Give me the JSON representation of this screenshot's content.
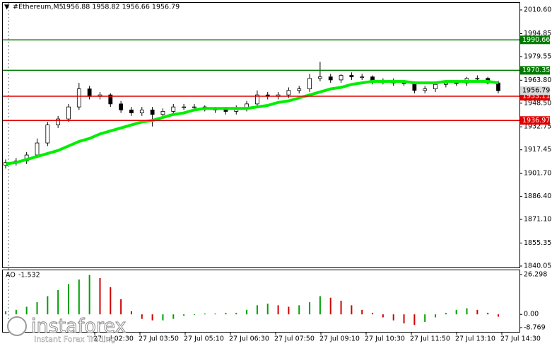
{
  "header": {
    "symbol": "#Ethereum,M5",
    "ohlc": "1956.88 1958.82 1956.66 1956.79"
  },
  "chart_data": [
    {
      "type": "candlestick",
      "open": [
        1907,
        1909,
        1910,
        1914,
        1922,
        1934,
        1938,
        1946,
        1958,
        1953,
        1954,
        1948,
        1944,
        1942,
        1944,
        1941,
        1943,
        1946,
        1946,
        1946,
        1945,
        1944,
        1943,
        1945,
        1948,
        1954,
        1953,
        1954,
        1957,
        1958,
        1965,
        1966,
        1964,
        1967,
        1966,
        1966,
        1963,
        1963,
        1962,
        1962,
        1957,
        1958,
        1961,
        1962,
        1962,
        1965,
        1965,
        1962
      ],
      "high": [
        1911,
        1912,
        1916,
        1925,
        1936,
        1940,
        1948,
        1962,
        1960,
        1956,
        1955,
        1950,
        1946,
        1946,
        1946,
        1945,
        1948,
        1948,
        1948,
        1947,
        1946,
        1946,
        1947,
        1950,
        1957,
        1956,
        1956,
        1959,
        1960,
        1968,
        1976,
        1968,
        1968,
        1969,
        1968,
        1967,
        1965,
        1965,
        1964,
        1963,
        1960,
        1962,
        1963,
        1964,
        1966,
        1967,
        1966,
        1963.5
      ],
      "low": [
        1905,
        1907,
        1908,
        1912,
        1920,
        1932,
        1936,
        1944,
        1951,
        1951,
        1946,
        1942,
        1940,
        1940,
        1933,
        1939,
        1941,
        1944,
        1944,
        1943,
        1942,
        1941,
        1941,
        1943,
        1946,
        1951,
        1951,
        1952,
        1955,
        1956,
        1963,
        1962,
        1962,
        1964,
        1964,
        1961,
        1961,
        1960,
        1960,
        1955,
        1955,
        1956,
        1959,
        1960,
        1960,
        1963,
        1961,
        1955
      ],
      "close": [
        1909,
        1910,
        1914,
        1922,
        1934,
        1938,
        1946,
        1958,
        1953,
        1954,
        1948,
        1944,
        1942,
        1944,
        1941,
        1943,
        1946,
        1946,
        1946,
        1945,
        1944,
        1943,
        1945,
        1948,
        1954,
        1953,
        1954,
        1957,
        1958,
        1965,
        1966,
        1964,
        1967,
        1966,
        1966,
        1963,
        1963,
        1962,
        1962,
        1957,
        1958,
        1961,
        1962,
        1962,
        1965,
        1965,
        1962,
        1956.79
      ],
      "ma": [
        1908,
        1909,
        1911,
        1913,
        1915,
        1917,
        1920,
        1923,
        1925,
        1928,
        1930,
        1932,
        1934,
        1936,
        1937,
        1939,
        1941,
        1942,
        1944,
        1945,
        1945,
        1945,
        1945,
        1945,
        1946,
        1947,
        1949,
        1950,
        1952,
        1954,
        1956,
        1958,
        1959,
        1961,
        1962,
        1963,
        1963,
        1963,
        1963,
        1962,
        1962,
        1962,
        1963,
        1963,
        1963,
        1963,
        1963,
        1962
      ],
      "ma_color": "#00ee00",
      "ylim": [
        1840.05,
        2010.6
      ],
      "yticks": [
        {
          "value": 2010.6,
          "label": "2010.60"
        },
        1994.85,
        1979.55,
        {
          "value": 1963.8,
          "label": "1963.80"
        },
        {
          "value": 1948.5,
          "label": "1948.50"
        },
        1932.75,
        1917.45,
        {
          "value": 1901.7,
          "label": "1901.70"
        },
        {
          "value": 1886.4,
          "label": "1886.40"
        },
        {
          "value": 1871.1,
          "label": "1871.10"
        },
        1855.35,
        1840.05
      ],
      "levels": [
        {
          "value": 1990.66,
          "color": "#007a00"
        },
        {
          "value": 1970.35,
          "color": "#007a00"
        },
        {
          "value": 1953.11,
          "color": "#e00000"
        },
        {
          "value": 1936.97,
          "color": "#e00000"
        }
      ],
      "current": 1956.79
    },
    {
      "type": "bar",
      "name": "AO",
      "current": -1.532,
      "values": [
        2,
        3,
        5,
        8,
        12,
        16,
        20,
        23,
        26,
        24,
        18,
        10,
        2,
        -3,
        -4,
        -4,
        -3,
        -1,
        0,
        0.5,
        0.5,
        1,
        1,
        3,
        6,
        7,
        6,
        5,
        6,
        8,
        12,
        11,
        9,
        6,
        3,
        1,
        -2,
        -4,
        -6,
        -7,
        -5,
        -2,
        1,
        3,
        4,
        3,
        1,
        -1.532
      ],
      "up_color": "#00a000",
      "down_color": "#d00000",
      "ylim": [
        -8.769,
        26.298
      ],
      "yticks": [
        26.298,
        {
          "value": 0,
          "label": "0.00"
        },
        -8.769
      ]
    }
  ],
  "time_axis": [
    "27 Jul 02:30",
    "27 Jul 03:50",
    "27 Jul 05:10",
    "27 Jul 06:30",
    "27 Jul 07:50",
    "27 Jul 09:10",
    "27 Jul 10:30",
    "27 Jul 11:50",
    "27 Jul 13:10",
    "27 Jul 14:30"
  ],
  "watermark": {
    "brand": "instaforex",
    "slogan": "Instant Forex Trading"
  }
}
